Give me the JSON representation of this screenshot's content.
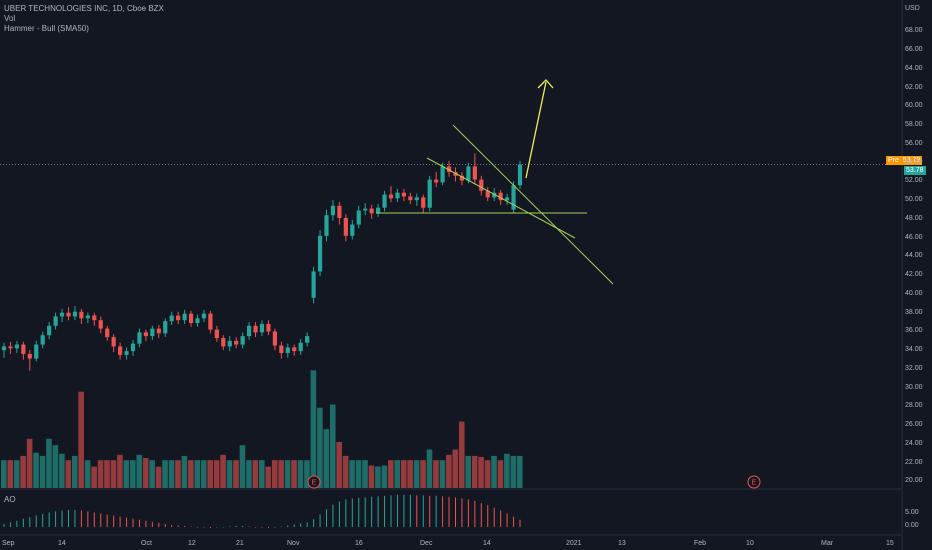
{
  "symbol_title": "UBER TECHNOLOGIES INC, 1D, Cboe BZX",
  "indicators": {
    "vol": "Vol",
    "hammer": "Hammer - Bull (SMA50)",
    "ao": "AO"
  },
  "currency": "USD",
  "y_axis_labels": [
    "68.00",
    "66.00",
    "64.00",
    "62.00",
    "60.00",
    "58.00",
    "56.00",
    "54.00",
    "52.00",
    "50.00",
    "48.00",
    "46.00",
    "44.00",
    "42.00",
    "40.00",
    "38.00",
    "36.00",
    "34.00",
    "32.00",
    "30.00",
    "28.00",
    "26.00",
    "24.00",
    "22.00",
    "20.00"
  ],
  "ao_axis_labels": [
    "5.00",
    "0.00"
  ],
  "x_axis_labels": [
    "Sep",
    "14",
    "Oct",
    "12",
    "21",
    "Nov",
    "16",
    "Dec",
    "14",
    "2021",
    "13",
    "Feb",
    "10",
    "Mar",
    "15"
  ],
  "pre_label": "Pre",
  "pre_price": "53.79",
  "last_price": "53.78",
  "earnings_marker": "E",
  "colors": {
    "up": "#26a69a",
    "down": "#ef5350",
    "background": "#131722",
    "trendline": "#a5d35a",
    "arrow": "#e8f05a",
    "pre_tag": "#ff9800",
    "price_tag": "#26a69a"
  },
  "chart_data": {
    "type": "candlestick",
    "title": "UBER TECHNOLOGIES INC, 1D, Cboe BZX",
    "ylim": [
      19,
      71
    ],
    "candles": [
      {
        "o": 34.0,
        "c": 34.4,
        "h": 34.8,
        "l": 33.2
      },
      {
        "o": 34.4,
        "c": 34.2,
        "h": 34.9,
        "l": 33.6
      },
      {
        "o": 34.2,
        "c": 34.6,
        "h": 35.0,
        "l": 33.7
      },
      {
        "o": 34.6,
        "c": 33.6,
        "h": 34.9,
        "l": 33.0
      },
      {
        "o": 33.6,
        "c": 33.1,
        "h": 34.0,
        "l": 31.8
      },
      {
        "o": 33.1,
        "c": 34.6,
        "h": 35.0,
        "l": 32.8
      },
      {
        "o": 34.6,
        "c": 35.6,
        "h": 36.0,
        "l": 34.2
      },
      {
        "o": 35.6,
        "c": 36.6,
        "h": 37.0,
        "l": 35.2
      },
      {
        "o": 36.6,
        "c": 37.6,
        "h": 38.0,
        "l": 36.2
      },
      {
        "o": 37.6,
        "c": 38.0,
        "h": 38.4,
        "l": 37.0
      },
      {
        "o": 38.0,
        "c": 37.6,
        "h": 38.6,
        "l": 37.2
      },
      {
        "o": 37.6,
        "c": 38.1,
        "h": 38.7,
        "l": 37.2
      },
      {
        "o": 38.1,
        "c": 37.4,
        "h": 38.4,
        "l": 36.8
      },
      {
        "o": 37.4,
        "c": 37.7,
        "h": 38.0,
        "l": 36.9
      },
      {
        "o": 37.7,
        "c": 37.2,
        "h": 38.0,
        "l": 36.6
      },
      {
        "o": 37.2,
        "c": 36.3,
        "h": 37.6,
        "l": 35.8
      },
      {
        "o": 36.3,
        "c": 35.4,
        "h": 36.6,
        "l": 35.0
      },
      {
        "o": 35.4,
        "c": 34.4,
        "h": 35.7,
        "l": 33.8
      },
      {
        "o": 34.4,
        "c": 33.5,
        "h": 34.8,
        "l": 33.0
      },
      {
        "o": 33.5,
        "c": 33.9,
        "h": 34.3,
        "l": 33.0
      },
      {
        "o": 33.9,
        "c": 34.7,
        "h": 35.1,
        "l": 33.4
      },
      {
        "o": 34.7,
        "c": 35.9,
        "h": 36.3,
        "l": 34.3
      },
      {
        "o": 35.9,
        "c": 35.5,
        "h": 36.2,
        "l": 35.0
      },
      {
        "o": 35.5,
        "c": 36.3,
        "h": 36.6,
        "l": 35.1
      },
      {
        "o": 36.3,
        "c": 35.8,
        "h": 36.7,
        "l": 35.3
      },
      {
        "o": 35.8,
        "c": 37.1,
        "h": 37.4,
        "l": 35.4
      },
      {
        "o": 37.1,
        "c": 37.7,
        "h": 38.1,
        "l": 36.7
      },
      {
        "o": 37.7,
        "c": 37.2,
        "h": 38.1,
        "l": 36.8
      },
      {
        "o": 37.2,
        "c": 37.9,
        "h": 38.3,
        "l": 36.8
      },
      {
        "o": 37.9,
        "c": 36.9,
        "h": 38.2,
        "l": 36.5
      },
      {
        "o": 36.9,
        "c": 37.4,
        "h": 37.8,
        "l": 36.5
      },
      {
        "o": 37.4,
        "c": 37.9,
        "h": 38.3,
        "l": 37.0
      },
      {
        "o": 37.9,
        "c": 36.2,
        "h": 38.2,
        "l": 35.8
      },
      {
        "o": 36.2,
        "c": 35.3,
        "h": 36.6,
        "l": 34.9
      },
      {
        "o": 35.3,
        "c": 34.4,
        "h": 35.6,
        "l": 34.0
      },
      {
        "o": 34.4,
        "c": 35.0,
        "h": 35.5,
        "l": 33.9
      },
      {
        "o": 35.0,
        "c": 34.6,
        "h": 35.4,
        "l": 34.2
      },
      {
        "o": 34.6,
        "c": 35.5,
        "h": 35.9,
        "l": 34.2
      },
      {
        "o": 35.5,
        "c": 36.6,
        "h": 37.0,
        "l": 35.1
      },
      {
        "o": 36.6,
        "c": 35.9,
        "h": 37.0,
        "l": 35.4
      },
      {
        "o": 35.9,
        "c": 36.8,
        "h": 37.2,
        "l": 35.5
      },
      {
        "o": 36.8,
        "c": 36.0,
        "h": 37.2,
        "l": 35.6
      },
      {
        "o": 36.0,
        "c": 34.5,
        "h": 36.3,
        "l": 34.0
      },
      {
        "o": 34.5,
        "c": 33.7,
        "h": 34.9,
        "l": 33.1
      },
      {
        "o": 33.7,
        "c": 34.3,
        "h": 34.7,
        "l": 33.2
      },
      {
        "o": 34.3,
        "c": 33.9,
        "h": 34.6,
        "l": 33.4
      },
      {
        "o": 33.9,
        "c": 34.8,
        "h": 35.2,
        "l": 33.5
      },
      {
        "o": 34.8,
        "c": 35.5,
        "h": 35.9,
        "l": 34.4
      },
      {
        "o": 39.6,
        "c": 42.4,
        "h": 42.9,
        "l": 39.0
      },
      {
        "o": 42.4,
        "c": 46.2,
        "h": 46.8,
        "l": 41.9
      },
      {
        "o": 46.2,
        "c": 48.4,
        "h": 49.0,
        "l": 45.6
      },
      {
        "o": 48.4,
        "c": 49.4,
        "h": 50.0,
        "l": 47.8
      },
      {
        "o": 49.4,
        "c": 48.1,
        "h": 49.8,
        "l": 47.4
      },
      {
        "o": 48.1,
        "c": 46.2,
        "h": 48.5,
        "l": 45.6
      },
      {
        "o": 46.2,
        "c": 47.4,
        "h": 47.9,
        "l": 45.8
      },
      {
        "o": 47.4,
        "c": 48.9,
        "h": 49.4,
        "l": 47.0
      },
      {
        "o": 48.9,
        "c": 49.1,
        "h": 49.7,
        "l": 48.4
      },
      {
        "o": 49.1,
        "c": 48.6,
        "h": 49.5,
        "l": 48.0
      },
      {
        "o": 48.6,
        "c": 49.2,
        "h": 49.6,
        "l": 48.2
      },
      {
        "o": 49.2,
        "c": 50.6,
        "h": 51.0,
        "l": 48.8
      },
      {
        "o": 50.6,
        "c": 50.2,
        "h": 51.5,
        "l": 49.8
      },
      {
        "o": 50.2,
        "c": 50.8,
        "h": 51.2,
        "l": 49.8
      },
      {
        "o": 50.8,
        "c": 50.4,
        "h": 51.2,
        "l": 49.9
      },
      {
        "o": 50.4,
        "c": 50.0,
        "h": 50.8,
        "l": 49.6
      },
      {
        "o": 50.0,
        "c": 50.3,
        "h": 50.7,
        "l": 49.4
      },
      {
        "o": 50.3,
        "c": 49.2,
        "h": 50.6,
        "l": 48.6
      },
      {
        "o": 49.2,
        "c": 52.2,
        "h": 52.6,
        "l": 48.8
      },
      {
        "o": 52.2,
        "c": 51.9,
        "h": 53.0,
        "l": 51.4
      },
      {
        "o": 51.9,
        "c": 53.6,
        "h": 54.0,
        "l": 51.6
      },
      {
        "o": 53.6,
        "c": 53.0,
        "h": 54.2,
        "l": 52.5
      },
      {
        "o": 53.0,
        "c": 52.6,
        "h": 53.5,
        "l": 52.0
      },
      {
        "o": 52.6,
        "c": 52.1,
        "h": 53.0,
        "l": 51.6
      },
      {
        "o": 52.1,
        "c": 53.6,
        "h": 54.0,
        "l": 51.8
      },
      {
        "o": 53.6,
        "c": 52.2,
        "h": 55.0,
        "l": 51.8
      },
      {
        "o": 52.2,
        "c": 51.0,
        "h": 52.6,
        "l": 50.5
      },
      {
        "o": 51.0,
        "c": 50.3,
        "h": 51.4,
        "l": 49.9
      },
      {
        "o": 50.3,
        "c": 50.8,
        "h": 51.3,
        "l": 49.9
      },
      {
        "o": 50.8,
        "c": 50.0,
        "h": 51.1,
        "l": 49.5
      },
      {
        "o": 50.0,
        "c": 50.3,
        "h": 50.7,
        "l": 49.5
      },
      {
        "o": 49.0,
        "c": 51.6,
        "h": 52.0,
        "l": 48.6
      },
      {
        "o": 51.6,
        "c": 53.8,
        "h": 54.2,
        "l": 51.2
      }
    ],
    "volume": [
      2.6,
      2.6,
      2.6,
      3.0,
      4.6,
      3.3,
      3.0,
      4.6,
      4.0,
      3.2,
      2.6,
      3.0,
      9.0,
      2.6,
      2.0,
      2.6,
      2.6,
      2.6,
      3.1,
      2.6,
      2.6,
      3.1,
      2.8,
      2.6,
      2.0,
      2.6,
      2.6,
      2.6,
      3.0,
      2.6,
      2.6,
      2.6,
      2.6,
      2.6,
      3.1,
      2.6,
      2.6,
      4.0,
      2.6,
      2.6,
      2.6,
      2.0,
      2.6,
      2.6,
      2.6,
      2.6,
      2.6,
      2.6,
      11.0,
      7.5,
      5.5,
      7.8,
      4.3,
      3.0,
      2.6,
      2.6,
      2.6,
      2.1,
      2.0,
      2.1,
      2.6,
      2.6,
      2.6,
      2.6,
      2.6,
      2.6,
      3.6,
      2.6,
      2.6,
      3.1,
      3.6,
      6.2,
      3.0,
      3.0,
      2.9,
      2.6,
      3.0,
      2.6,
      3.2,
      3.0,
      3.0
    ],
    "ao": [
      0.6,
      0.9,
      1.2,
      1.6,
      1.9,
      2.2,
      2.5,
      2.8,
      3.0,
      3.2,
      3.3,
      3.3,
      3.2,
      3.0,
      2.8,
      2.6,
      2.4,
      2.2,
      2.0,
      1.8,
      1.6,
      1.4,
      1.2,
      1.0,
      0.8,
      0.6,
      0.4,
      0.3,
      0.2,
      0.1,
      0.0,
      -0.1,
      -0.2,
      -0.1,
      0.0,
      0.1,
      0.2,
      0.2,
      0.1,
      0.0,
      -0.1,
      -0.2,
      -0.1,
      0.1,
      0.3,
      0.5,
      0.7,
      0.9,
      1.5,
      2.4,
      3.4,
      4.3,
      4.9,
      5.3,
      5.5,
      5.6,
      5.7,
      5.8,
      5.9,
      6.0,
      6.1,
      6.2,
      6.2,
      6.2,
      6.1,
      6.1,
      6.0,
      6.0,
      5.9,
      5.8,
      5.7,
      5.5,
      5.3,
      5.0,
      4.6,
      4.2,
      3.7,
      3.2,
      2.6,
      2.0,
      1.4
    ]
  }
}
